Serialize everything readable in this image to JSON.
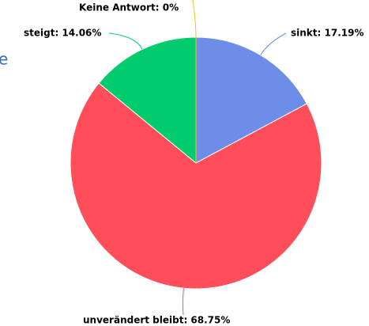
{
  "fragment": "e",
  "chart_data": {
    "type": "pie",
    "labels": [
      "sinkt: 17.19%",
      "unverändert bleibt: 68.75%",
      "steigt: 14.06%",
      "Keine Antwort: 0%"
    ],
    "values": [
      17.19,
      68.75,
      14.06,
      0
    ],
    "colors": [
      "#6c8ee8",
      "#ff4d5a",
      "#00cc6e",
      "#f0c419"
    ]
  }
}
